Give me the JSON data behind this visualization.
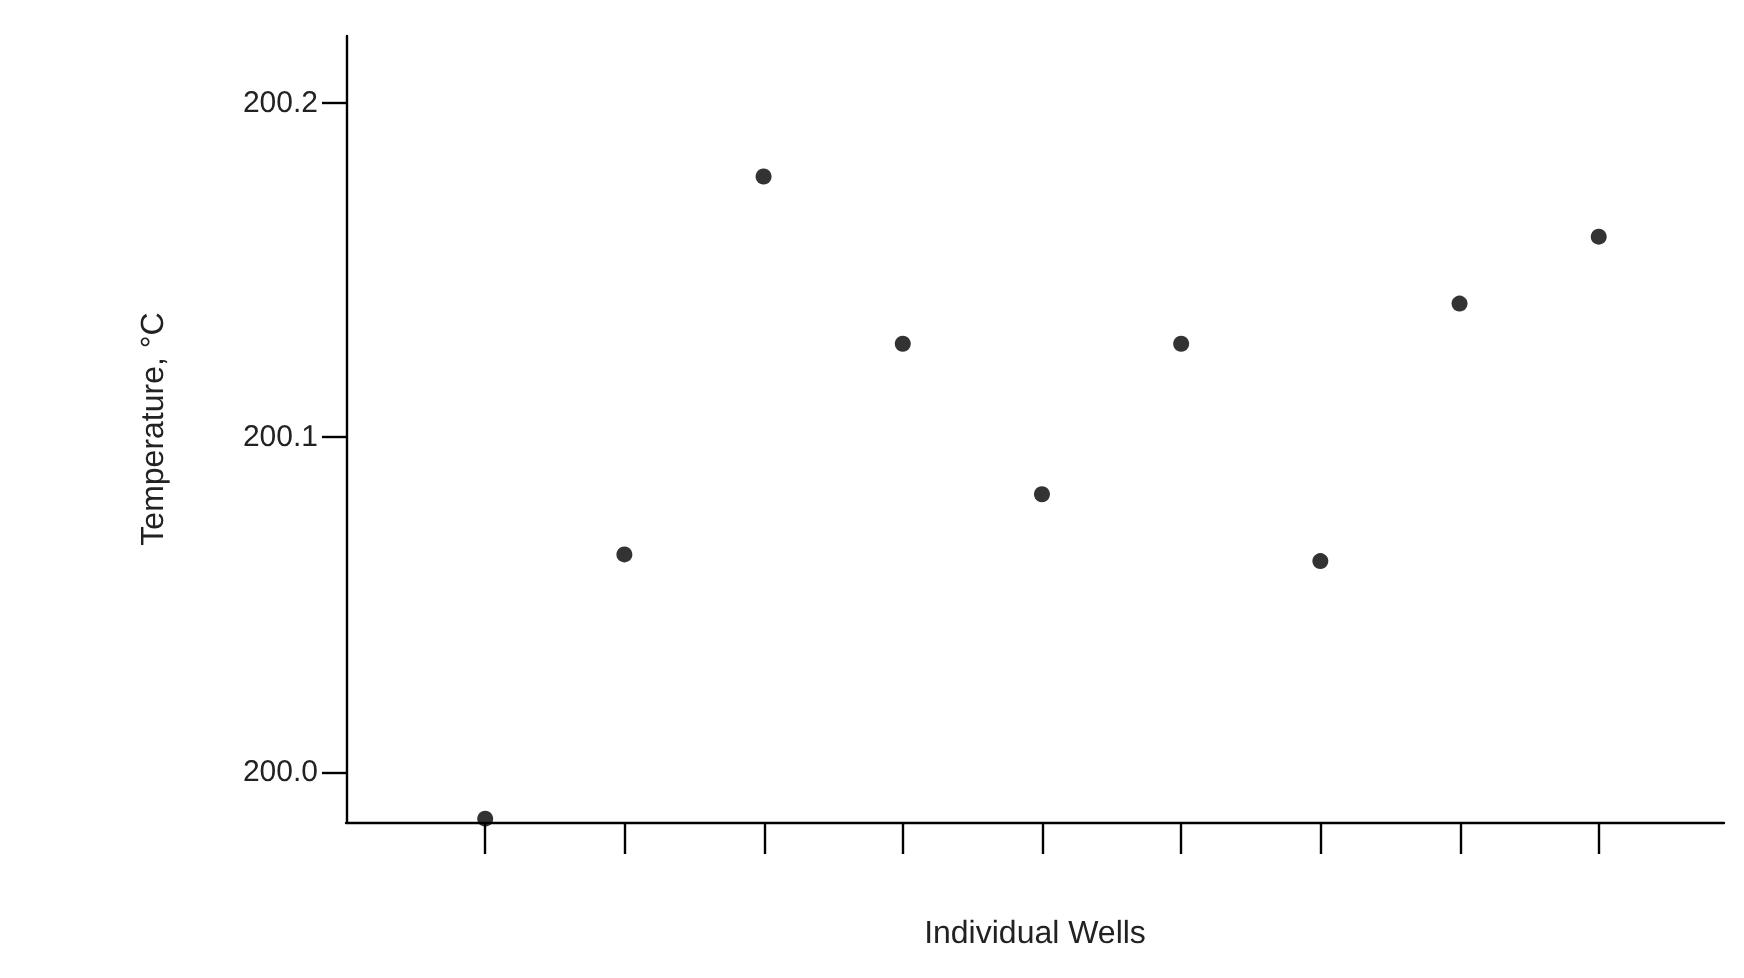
{
  "chart_data": {
    "type": "scatter",
    "xlabel": "Individual Wells",
    "ylabel": "Temperature, °C",
    "categories": [
      null,
      null,
      null,
      null,
      null,
      null,
      null,
      null,
      null
    ],
    "values": [
      199.986,
      200.065,
      200.178,
      200.128,
      200.083,
      200.128,
      200.063,
      200.14,
      200.16
    ],
    "color": "#000000",
    "marker": "circle",
    "ylim": [
      199.985,
      200.22
    ],
    "yticks": [
      {
        "value": 200.0,
        "label": "200.0"
      },
      {
        "value": 200.1,
        "label": "200.1"
      },
      {
        "value": 200.2,
        "label": "200.2"
      }
    ],
    "grid": false
  }
}
